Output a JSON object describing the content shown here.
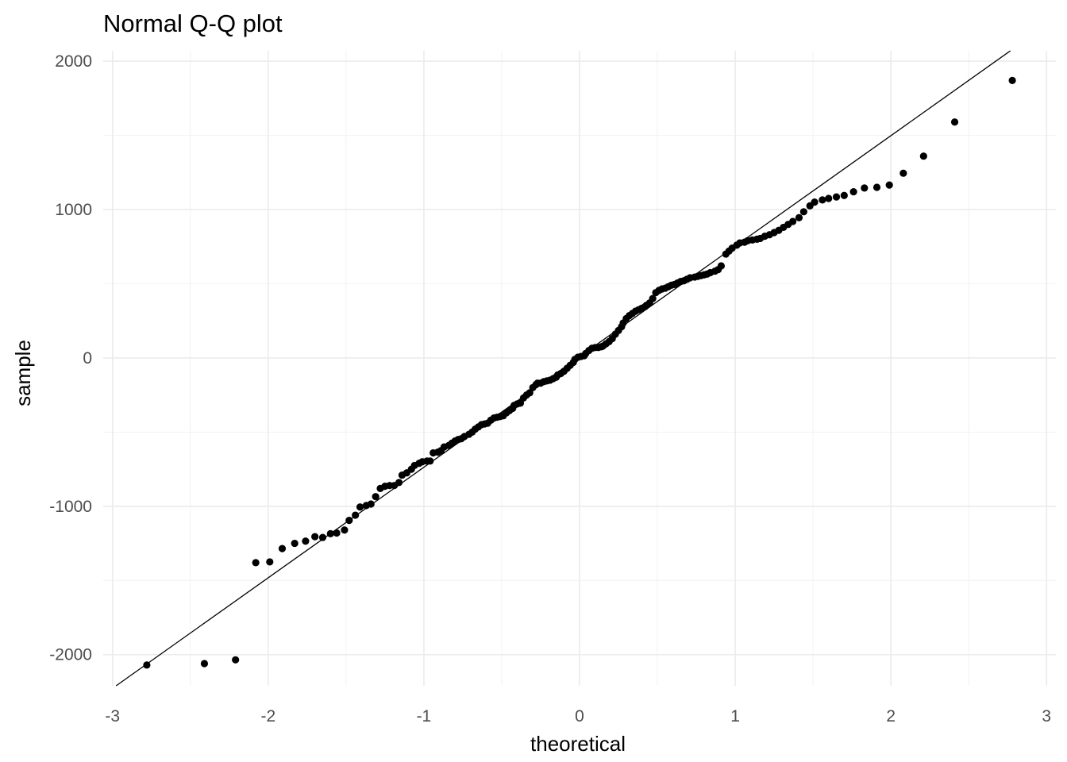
{
  "chart_data": {
    "type": "scatter",
    "title": "Normal Q-Q plot",
    "xlabel": "theoretical",
    "ylabel": "sample",
    "xlim": [
      -3.06,
      3.06
    ],
    "ylim": [
      -2210,
      2070
    ],
    "x_ticks": [
      -3,
      -2,
      -1,
      0,
      1,
      2,
      3
    ],
    "x_tick_labels": [
      "-3",
      "-2",
      "-1",
      "0",
      "1",
      "2",
      "3"
    ],
    "y_ticks": [
      -2000,
      -1000,
      0,
      1000,
      2000
    ],
    "y_tick_labels": [
      "-2000",
      "-1000",
      "0",
      "1000",
      "2000"
    ],
    "grid": true,
    "reference_line": {
      "slope": 745,
      "intercept": 8
    },
    "point_color": "#000000",
    "line_color": "#000000",
    "series": [
      {
        "points": [
          [
            -2.78,
            -2070
          ],
          [
            -2.41,
            -2060
          ],
          [
            -2.21,
            -2035
          ],
          [
            -2.08,
            -1380
          ],
          [
            -1.99,
            -1375
          ],
          [
            -1.91,
            -1285
          ],
          [
            -1.83,
            -1250
          ],
          [
            -1.76,
            -1235
          ],
          [
            -1.7,
            -1205
          ],
          [
            -1.65,
            -1210
          ],
          [
            -1.6,
            -1185
          ],
          [
            -1.56,
            -1180
          ],
          [
            -1.51,
            -1160
          ],
          [
            -1.48,
            -1095
          ],
          [
            -1.44,
            -1060
          ],
          [
            -1.41,
            -1005
          ],
          [
            -1.37,
            -995
          ],
          [
            -1.34,
            -985
          ],
          [
            -1.31,
            -935
          ],
          [
            -1.28,
            -880
          ],
          [
            -1.25,
            -865
          ],
          [
            -1.22,
            -860
          ],
          [
            -1.19,
            -860
          ],
          [
            -1.16,
            -840
          ],
          [
            -1.14,
            -790
          ],
          [
            -1.11,
            -775
          ],
          [
            -1.08,
            -750
          ],
          [
            -1.06,
            -725
          ],
          [
            -1.03,
            -710
          ],
          [
            -1.01,
            -700
          ],
          [
            -0.98,
            -695
          ],
          [
            -0.96,
            -695
          ],
          [
            -0.94,
            -640
          ],
          [
            -0.91,
            -635
          ],
          [
            -0.89,
            -625
          ],
          [
            -0.87,
            -600
          ],
          [
            -0.84,
            -590
          ],
          [
            -0.82,
            -575
          ],
          [
            -0.8,
            -560
          ],
          [
            -0.78,
            -550
          ],
          [
            -0.76,
            -545
          ],
          [
            -0.74,
            -530
          ],
          [
            -0.71,
            -515
          ],
          [
            -0.69,
            -500
          ],
          [
            -0.67,
            -480
          ],
          [
            -0.65,
            -465
          ],
          [
            -0.63,
            -450
          ],
          [
            -0.61,
            -445
          ],
          [
            -0.59,
            -440
          ],
          [
            -0.57,
            -420
          ],
          [
            -0.55,
            -405
          ],
          [
            -0.53,
            -400
          ],
          [
            -0.51,
            -395
          ],
          [
            -0.49,
            -390
          ],
          [
            -0.47,
            -370
          ],
          [
            -0.45,
            -355
          ],
          [
            -0.43,
            -340
          ],
          [
            -0.42,
            -320
          ],
          [
            -0.4,
            -310
          ],
          [
            -0.38,
            -305
          ],
          [
            -0.36,
            -270
          ],
          [
            -0.34,
            -250
          ],
          [
            -0.32,
            -235
          ],
          [
            -0.3,
            -200
          ],
          [
            -0.28,
            -180
          ],
          [
            -0.27,
            -170
          ],
          [
            -0.25,
            -170
          ],
          [
            -0.23,
            -160
          ],
          [
            -0.21,
            -155
          ],
          [
            -0.19,
            -150
          ],
          [
            -0.17,
            -140
          ],
          [
            -0.15,
            -130
          ],
          [
            -0.14,
            -115
          ],
          [
            -0.12,
            -105
          ],
          [
            -0.1,
            -90
          ],
          [
            -0.08,
            -70
          ],
          [
            -0.06,
            -50
          ],
          [
            -0.04,
            -30
          ],
          [
            -0.03,
            -10
          ],
          [
            -0.01,
            5
          ],
          [
            0.01,
            10
          ],
          [
            0.03,
            15
          ],
          [
            0.04,
            30
          ],
          [
            0.06,
            50
          ],
          [
            0.08,
            65
          ],
          [
            0.1,
            70
          ],
          [
            0.12,
            70
          ],
          [
            0.14,
            75
          ],
          [
            0.15,
            80
          ],
          [
            0.17,
            95
          ],
          [
            0.19,
            110
          ],
          [
            0.21,
            130
          ],
          [
            0.23,
            160
          ],
          [
            0.25,
            185
          ],
          [
            0.27,
            210
          ],
          [
            0.28,
            235
          ],
          [
            0.3,
            265
          ],
          [
            0.32,
            285
          ],
          [
            0.34,
            300
          ],
          [
            0.36,
            315
          ],
          [
            0.38,
            325
          ],
          [
            0.4,
            335
          ],
          [
            0.42,
            345
          ],
          [
            0.43,
            355
          ],
          [
            0.45,
            370
          ],
          [
            0.47,
            400
          ],
          [
            0.49,
            440
          ],
          [
            0.51,
            455
          ],
          [
            0.53,
            465
          ],
          [
            0.55,
            470
          ],
          [
            0.57,
            480
          ],
          [
            0.59,
            490
          ],
          [
            0.61,
            495
          ],
          [
            0.63,
            505
          ],
          [
            0.65,
            515
          ],
          [
            0.67,
            520
          ],
          [
            0.69,
            530
          ],
          [
            0.71,
            540
          ],
          [
            0.74,
            545
          ],
          [
            0.76,
            550
          ],
          [
            0.78,
            555
          ],
          [
            0.8,
            560
          ],
          [
            0.82,
            565
          ],
          [
            0.84,
            575
          ],
          [
            0.87,
            585
          ],
          [
            0.89,
            595
          ],
          [
            0.91,
            620
          ],
          [
            0.94,
            700
          ],
          [
            0.96,
            720
          ],
          [
            0.98,
            740
          ],
          [
            1.01,
            760
          ],
          [
            1.03,
            775
          ],
          [
            1.06,
            780
          ],
          [
            1.08,
            790
          ],
          [
            1.11,
            795
          ],
          [
            1.14,
            800
          ],
          [
            1.16,
            805
          ],
          [
            1.19,
            820
          ],
          [
            1.22,
            830
          ],
          [
            1.25,
            845
          ],
          [
            1.28,
            860
          ],
          [
            1.31,
            880
          ],
          [
            1.34,
            900
          ],
          [
            1.37,
            920
          ],
          [
            1.41,
            945
          ],
          [
            1.44,
            985
          ],
          [
            1.48,
            1025
          ],
          [
            1.51,
            1050
          ],
          [
            1.56,
            1065
          ],
          [
            1.6,
            1075
          ],
          [
            1.65,
            1085
          ],
          [
            1.7,
            1095
          ],
          [
            1.76,
            1120
          ],
          [
            1.83,
            1145
          ],
          [
            1.91,
            1150
          ],
          [
            1.99,
            1165
          ],
          [
            2.08,
            1245
          ],
          [
            2.21,
            1360
          ],
          [
            2.41,
            1590
          ],
          [
            2.78,
            1870
          ]
        ]
      }
    ]
  }
}
